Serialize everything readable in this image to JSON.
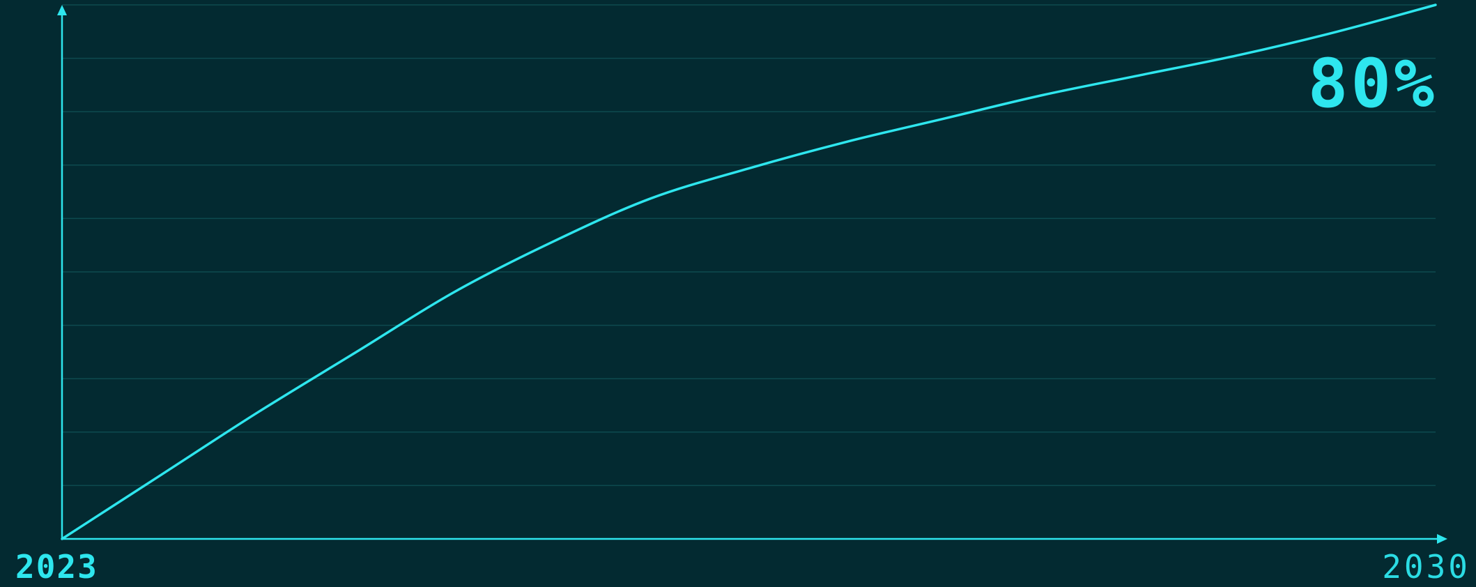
{
  "colors": {
    "background": "#032a31",
    "accent": "#2ee6ee",
    "grid": "#0e4a4f"
  },
  "chart_data": {
    "type": "line",
    "title": "",
    "xlabel": "",
    "ylabel": "",
    "x_tick_labels": {
      "start": "2023",
      "end": "2030"
    },
    "annotation": "80%",
    "xlim": [
      2023,
      2030
    ],
    "ylim": [
      0,
      80
    ],
    "grid": true,
    "grid_lines": 10,
    "series": [
      {
        "x": [
          2023.0,
          2023.5,
          2024.0,
          2024.5,
          2025.0,
          2025.5,
          2026.0,
          2026.5,
          2027.0,
          2027.5,
          2028.0,
          2028.5,
          2029.0,
          2029.5,
          2030.0
        ],
        "values": [
          0.0,
          9.5,
          19.0,
          28.0,
          37.0,
          44.5,
          51.0,
          55.5,
          59.5,
          63.0,
          66.5,
          69.5,
          72.5,
          76.0,
          80.0
        ]
      }
    ]
  }
}
